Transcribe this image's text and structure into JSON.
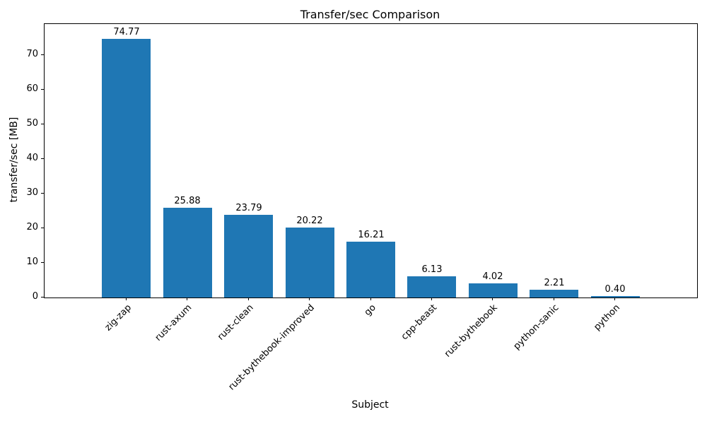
{
  "chart_data": {
    "type": "bar",
    "title": "Transfer/sec Comparison",
    "xlabel": "Subject",
    "ylabel": "transfer/sec [MB]",
    "categories": [
      "zig-zap",
      "rust-axum",
      "rust-clean",
      "rust-bythebook-improved",
      "go",
      "cpp-beast",
      "rust-bythebook",
      "python-sanic",
      "python"
    ],
    "values": [
      74.77,
      25.88,
      23.79,
      20.22,
      16.21,
      6.13,
      4.02,
      2.21,
      0.4
    ],
    "value_labels": [
      "74.77",
      "25.88",
      "23.79",
      "20.22",
      "16.21",
      "6.13",
      "4.02",
      "2.21",
      "0.40"
    ],
    "yticks": [
      0,
      10,
      20,
      30,
      40,
      50,
      60,
      70
    ],
    "ytick_labels": [
      "0",
      "10",
      "20",
      "30",
      "40",
      "50",
      "60",
      "70"
    ],
    "ylim": [
      0,
      79
    ],
    "bar_color": "#1f77b4",
    "grid": false,
    "legend": null
  }
}
